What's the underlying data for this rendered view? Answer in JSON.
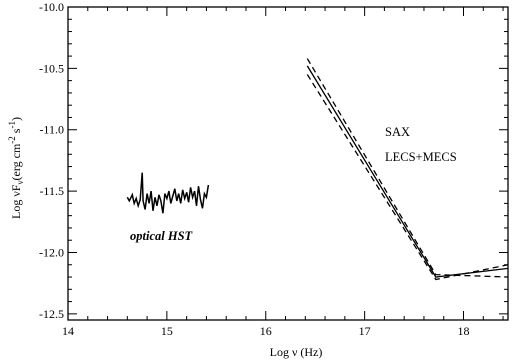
{
  "chart_data": {
    "type": "line",
    "xlabel": "Log ν (Hz)",
    "ylabel_main": "Log νF",
    "ylabel_sub": "ν",
    "ylabel_units": "(erg cm",
    "ylabel_exp1": "-2",
    "ylabel_mid": " s",
    "ylabel_exp2": "-1",
    "ylabel_end": ")",
    "xlim": [
      14.0,
      18.45
    ],
    "ylim": [
      -12.55,
      -10.0
    ],
    "x_ticks": [
      {
        "value": 14,
        "label": "14"
      },
      {
        "value": 15,
        "label": "15"
      },
      {
        "value": 16,
        "label": "16"
      },
      {
        "value": 17,
        "label": "17"
      },
      {
        "value": 18,
        "label": "18"
      }
    ],
    "y_ticks": [
      {
        "value": -10.0,
        "label": "-10.0"
      },
      {
        "value": -10.5,
        "label": "-10.5"
      },
      {
        "value": -11.0,
        "label": "-11.0"
      },
      {
        "value": -11.5,
        "label": "-11.5"
      },
      {
        "value": -12.0,
        "label": "-12.0"
      },
      {
        "value": -12.5,
        "label": "-12.5"
      }
    ],
    "annotations": {
      "sax": "SAX",
      "lecs": "LECS+MECS",
      "optical": "optical  HST"
    },
    "series": [
      {
        "style": "solid",
        "x": [
          16.42,
          17.72,
          18.45
        ],
        "y": [
          -10.48,
          -12.2,
          -12.13
        ]
      },
      {
        "style": "dashed",
        "x": [
          16.42,
          17.72,
          18.45
        ],
        "y": [
          -10.42,
          -12.18,
          -12.2
        ]
      },
      {
        "style": "dashed",
        "x": [
          16.42,
          17.72,
          18.45
        ],
        "y": [
          -10.55,
          -12.22,
          -12.1
        ]
      },
      {
        "style": "solid",
        "x": [
          14.6,
          14.62,
          14.65,
          14.67,
          14.69,
          14.71,
          14.73,
          14.75,
          14.76,
          14.78,
          14.8,
          14.82,
          14.84,
          14.86,
          14.88,
          14.9,
          14.92,
          14.94,
          14.96,
          14.98,
          15.0,
          15.02,
          15.04,
          15.06,
          15.08,
          15.1,
          15.12,
          15.14,
          15.16,
          15.18,
          15.2,
          15.22,
          15.24,
          15.26,
          15.28,
          15.3,
          15.32,
          15.34,
          15.36,
          15.38,
          15.4,
          15.42
        ],
        "y": [
          -11.55,
          -11.58,
          -11.53,
          -11.6,
          -11.56,
          -11.62,
          -11.57,
          -11.35,
          -11.58,
          -11.65,
          -11.52,
          -11.6,
          -11.5,
          -11.66,
          -11.55,
          -11.62,
          -11.53,
          -11.58,
          -11.68,
          -11.52,
          -11.56,
          -11.5,
          -11.6,
          -11.54,
          -11.48,
          -11.58,
          -11.52,
          -11.6,
          -11.49,
          -11.56,
          -11.51,
          -11.59,
          -11.47,
          -11.55,
          -11.5,
          -11.62,
          -11.46,
          -11.57,
          -11.64,
          -11.52,
          -11.55,
          -11.45
        ]
      }
    ]
  }
}
